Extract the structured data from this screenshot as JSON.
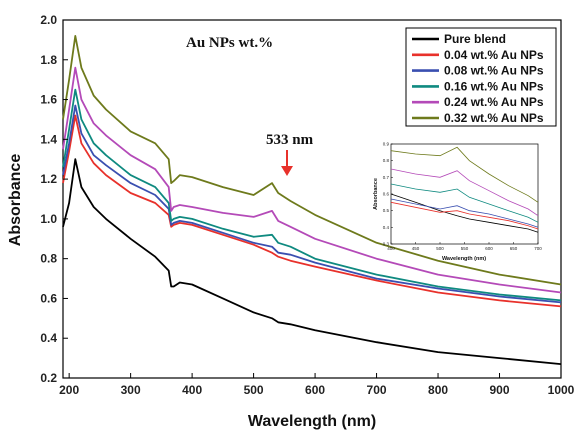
{
  "chart_data": {
    "type": "line",
    "annotation_title": "Au NPs wt.%",
    "peak_label": "533 nm",
    "peak_x": 533,
    "xlabel": "Wavelength (nm)",
    "ylabel": "Absorbance",
    "xlim": [
      190,
      1000
    ],
    "ylim": [
      0.2,
      2.0
    ],
    "xticks": [
      200,
      300,
      400,
      500,
      600,
      700,
      800,
      900,
      1000
    ],
    "yticks": [
      0.2,
      0.4,
      0.6,
      0.8,
      1.0,
      1.2,
      1.4,
      1.6,
      1.8,
      2.0
    ],
    "legend_position": "top-right",
    "series": [
      {
        "name": "Pure blend",
        "color": "#000000",
        "x": [
          190,
          200,
          210,
          220,
          240,
          260,
          300,
          340,
          362,
          366,
          370,
          380,
          400,
          450,
          500,
          530,
          540,
          560,
          600,
          700,
          800,
          900,
          1000
        ],
        "y": [
          0.96,
          1.08,
          1.3,
          1.16,
          1.06,
          1.0,
          0.9,
          0.81,
          0.74,
          0.66,
          0.66,
          0.68,
          0.67,
          0.6,
          0.53,
          0.5,
          0.48,
          0.47,
          0.44,
          0.38,
          0.33,
          0.3,
          0.27
        ]
      },
      {
        "name": "0.04 wt.% Au NPs",
        "color": "#e8312b",
        "x": [
          190,
          200,
          210,
          220,
          240,
          260,
          300,
          340,
          362,
          366,
          370,
          380,
          400,
          450,
          500,
          530,
          540,
          560,
          600,
          700,
          800,
          900,
          1000
        ],
        "y": [
          1.18,
          1.34,
          1.52,
          1.38,
          1.28,
          1.22,
          1.13,
          1.08,
          1.02,
          0.96,
          0.97,
          0.98,
          0.97,
          0.92,
          0.87,
          0.83,
          0.81,
          0.79,
          0.76,
          0.69,
          0.63,
          0.59,
          0.56
        ]
      },
      {
        "name": "0.08 wt.% Au NPs",
        "color": "#3a4fb0",
        "x": [
          190,
          200,
          210,
          220,
          240,
          260,
          300,
          340,
          362,
          366,
          370,
          380,
          400,
          450,
          500,
          530,
          540,
          560,
          600,
          700,
          800,
          900,
          1000
        ],
        "y": [
          1.22,
          1.38,
          1.57,
          1.43,
          1.32,
          1.27,
          1.18,
          1.12,
          1.05,
          0.97,
          0.98,
          0.99,
          0.98,
          0.93,
          0.88,
          0.86,
          0.83,
          0.82,
          0.78,
          0.7,
          0.65,
          0.61,
          0.58
        ]
      },
      {
        "name": "0.16 wt.% Au NPs",
        "color": "#0f8a80",
        "x": [
          190,
          200,
          210,
          220,
          240,
          260,
          300,
          340,
          362,
          366,
          370,
          380,
          400,
          450,
          500,
          530,
          540,
          560,
          600,
          700,
          800,
          900,
          1000
        ],
        "y": [
          1.26,
          1.45,
          1.65,
          1.5,
          1.38,
          1.32,
          1.22,
          1.16,
          1.08,
          0.99,
          1.0,
          1.01,
          1.0,
          0.95,
          0.91,
          0.92,
          0.88,
          0.86,
          0.8,
          0.72,
          0.66,
          0.62,
          0.59
        ]
      },
      {
        "name": "0.24 wt.% Au NPs",
        "color": "#b44ab8",
        "x": [
          190,
          200,
          210,
          220,
          240,
          260,
          300,
          340,
          362,
          366,
          370,
          380,
          400,
          450,
          500,
          530,
          540,
          560,
          600,
          700,
          800,
          900,
          1000
        ],
        "y": [
          1.35,
          1.55,
          1.76,
          1.6,
          1.48,
          1.42,
          1.32,
          1.25,
          1.16,
          1.04,
          1.06,
          1.07,
          1.06,
          1.03,
          1.01,
          1.04,
          0.99,
          0.96,
          0.9,
          0.8,
          0.72,
          0.67,
          0.63
        ]
      },
      {
        "name": "0.32 wt.% Au NPs",
        "color": "#6e7a1c",
        "x": [
          190,
          200,
          210,
          220,
          240,
          260,
          300,
          340,
          362,
          366,
          370,
          380,
          400,
          450,
          500,
          530,
          540,
          560,
          600,
          700,
          800,
          900,
          1000
        ],
        "y": [
          1.5,
          1.7,
          1.92,
          1.76,
          1.62,
          1.55,
          1.44,
          1.38,
          1.3,
          1.18,
          1.19,
          1.22,
          1.21,
          1.16,
          1.12,
          1.18,
          1.13,
          1.09,
          1.02,
          0.88,
          0.79,
          0.72,
          0.67
        ]
      }
    ],
    "inset": {
      "xlabel": "Wavelength (nm)",
      "ylabel": "Absorbance",
      "xlim": [
        400,
        700
      ],
      "ylim": [
        0.3,
        0.9
      ],
      "xticks": [
        400,
        450,
        500,
        550,
        600,
        650,
        700
      ],
      "yticks": [
        0.3,
        0.4,
        0.5,
        0.6,
        0.7,
        0.8,
        0.9
      ],
      "series_y": [
        [
          0.6,
          0.55,
          0.5,
          0.47,
          0.45,
          0.43,
          0.41,
          0.39,
          0.37
        ],
        [
          0.55,
          0.52,
          0.49,
          0.5,
          0.48,
          0.46,
          0.44,
          0.41,
          0.39
        ],
        [
          0.57,
          0.54,
          0.51,
          0.53,
          0.5,
          0.48,
          0.45,
          0.42,
          0.4
        ],
        [
          0.66,
          0.63,
          0.61,
          0.63,
          0.58,
          0.54,
          0.5,
          0.46,
          0.43
        ],
        [
          0.75,
          0.72,
          0.7,
          0.74,
          0.68,
          0.62,
          0.56,
          0.51,
          0.47
        ],
        [
          0.86,
          0.84,
          0.83,
          0.88,
          0.8,
          0.72,
          0.65,
          0.59,
          0.55
        ]
      ],
      "series_x": [
        400,
        450,
        500,
        535,
        560,
        600,
        640,
        680,
        700
      ]
    }
  }
}
